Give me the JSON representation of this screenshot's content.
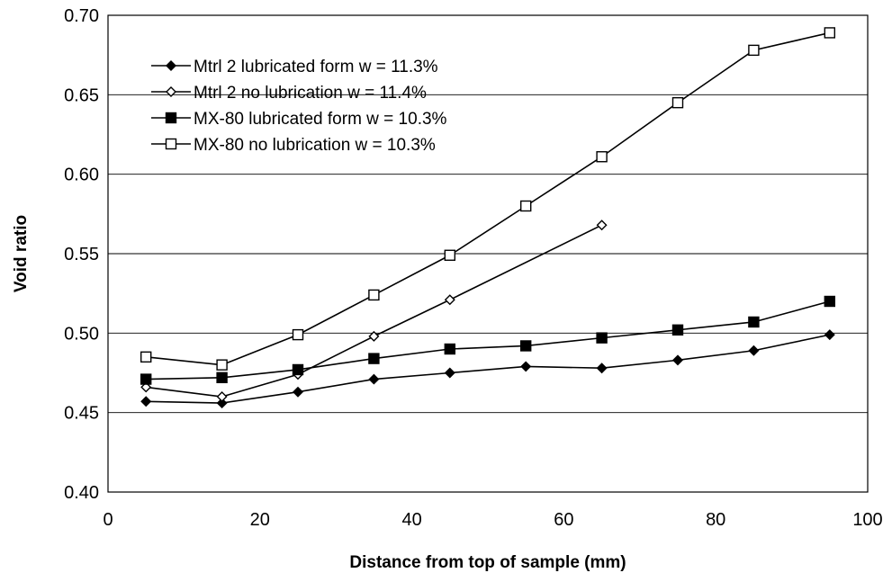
{
  "chart_data": {
    "type": "line",
    "title": "",
    "xlabel": "Distance from top of sample (mm)",
    "ylabel": "Void ratio",
    "xlim": [
      0,
      100
    ],
    "ylim": [
      0.4,
      0.7
    ],
    "xticks": [
      0,
      20,
      40,
      60,
      80,
      100
    ],
    "yticks": [
      0.4,
      0.45,
      0.5,
      0.55,
      0.6,
      0.65,
      0.7
    ],
    "xtick_labels": [
      "0",
      "20",
      "40",
      "60",
      "80",
      "100"
    ],
    "ytick_labels": [
      "0.40",
      "0.45",
      "0.50",
      "0.55",
      "0.60",
      "0.65",
      "0.70"
    ],
    "grid": "horizontal",
    "legend_position": "top-left",
    "series": [
      {
        "name": "Mtrl 2 lubricated form w = 11.3%",
        "marker": "filled-diamond",
        "color": "#000000",
        "x": [
          5,
          15,
          25,
          35,
          45,
          55,
          65,
          75,
          85,
          95
        ],
        "y": [
          0.457,
          0.456,
          0.463,
          0.471,
          0.475,
          0.479,
          0.478,
          0.483,
          0.489,
          0.499
        ]
      },
      {
        "name": "Mtrl 2 no lubrication w = 11.4%",
        "marker": "open-diamond",
        "color": "#000000",
        "x": [
          5,
          15,
          25,
          35,
          45,
          65
        ],
        "y": [
          0.466,
          0.46,
          0.474,
          0.498,
          0.521,
          0.568
        ]
      },
      {
        "name": "MX-80 lubricated form w = 10.3%",
        "marker": "filled-square",
        "color": "#000000",
        "x": [
          5,
          15,
          25,
          35,
          45,
          55,
          65,
          75,
          85,
          95
        ],
        "y": [
          0.471,
          0.472,
          0.477,
          0.484,
          0.49,
          0.492,
          0.497,
          0.502,
          0.507,
          0.52
        ]
      },
      {
        "name": "MX-80 no lubrication w = 10.3%",
        "marker": "open-square",
        "color": "#000000",
        "x": [
          5,
          15,
          25,
          35,
          45,
          55,
          65,
          75,
          85,
          95
        ],
        "y": [
          0.485,
          0.48,
          0.499,
          0.524,
          0.549,
          0.58,
          0.611,
          0.645,
          0.678,
          0.689
        ]
      }
    ]
  }
}
